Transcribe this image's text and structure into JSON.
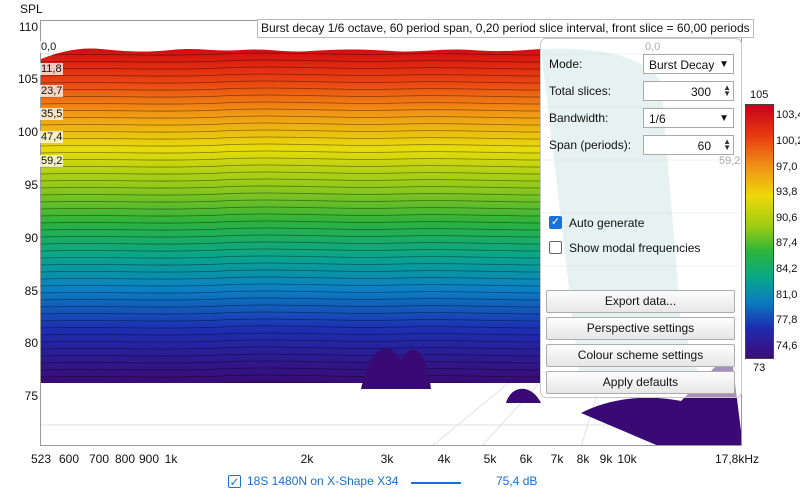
{
  "plot": {
    "title": "Burst decay 1/6 octave, 60 period span, 0,20 period slice interval,  front slice = 60,00 periods",
    "y_axis_label": "SPL",
    "y_ticks": [
      "110",
      "105",
      "100",
      "95",
      "90",
      "85",
      "80",
      "75"
    ],
    "x_ticks": [
      "523",
      "600",
      "700",
      "800",
      "900",
      "1k",
      "2k",
      "3k",
      "4k",
      "5k",
      "6k",
      "7k",
      "8k",
      "9k",
      "10k",
      "17,8kHz"
    ],
    "slice_labels": [
      "0,0",
      "11,8",
      "23,7",
      "35,5",
      "47,4",
      "59,2"
    ],
    "ghost_labels": [
      "0,0",
      "59,2"
    ]
  },
  "controls": {
    "mode_label": "Mode:",
    "mode_value": "Burst Decay",
    "total_slices_label": "Total slices:",
    "total_slices_value": "300",
    "bandwidth_label": "Bandwidth:",
    "bandwidth_value": "1/6",
    "span_label": "Span (periods):",
    "span_value": "60",
    "auto_generate_label": "Auto generate",
    "auto_generate_checked": true,
    "show_modal_label": "Show modal frequencies",
    "show_modal_checked": false,
    "export_label": "Export data...",
    "perspective_label": "Perspective settings",
    "colour_label": "Colour scheme settings",
    "defaults_label": "Apply defaults"
  },
  "colour_scale": {
    "top": "105",
    "ticks": [
      "103,4",
      "100,2",
      "97,0",
      "93,8",
      "90,6",
      "87,4",
      "84,2",
      "81,0",
      "77,8",
      "74,6"
    ],
    "bottom": "73"
  },
  "legend": {
    "checked": true,
    "name": "18S 1480N on X-Shape X34",
    "line_color": "#1a6fd0",
    "value": "75,4 dB"
  }
}
